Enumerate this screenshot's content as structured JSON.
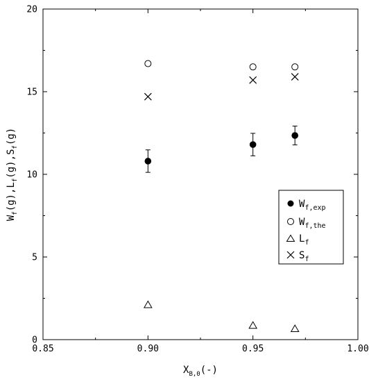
{
  "chart_data": {
    "type": "scatter",
    "title": "",
    "xlabel": {
      "main": "X",
      "sub": "B,0",
      "suffix": "(-)"
    },
    "ylabel": [
      {
        "main": "W",
        "sub": "f",
        "suffix": "(g),"
      },
      {
        "main": "L",
        "sub": "f",
        "suffix": "(g),"
      },
      {
        "main": "S",
        "sub": "f",
        "suffix": "(g)"
      }
    ],
    "xlim": [
      0.85,
      1.0
    ],
    "ylim": [
      0,
      20
    ],
    "xticks": [
      0.85,
      0.9,
      0.95,
      1.0
    ],
    "xtick_labels": [
      "0.85",
      "0.90",
      "0.95",
      "1.00"
    ],
    "yticks": [
      0,
      5,
      10,
      15,
      20
    ],
    "ytick_labels": [
      "0",
      "5",
      "10",
      "15",
      "20"
    ],
    "grid": false,
    "legend_position": "right",
    "series": [
      {
        "name": "W_f,exp",
        "label_main": "W",
        "label_sub": "f,exp",
        "marker": "filled-circle",
        "x": [
          0.9,
          0.95,
          0.97
        ],
        "y": [
          10.8,
          11.8,
          12.35
        ],
        "yerr": [
          0.68,
          0.68,
          0.57
        ]
      },
      {
        "name": "W_f,the",
        "label_main": "W",
        "label_sub": "f,the",
        "marker": "open-circle",
        "x": [
          0.9,
          0.95,
          0.97
        ],
        "y": [
          16.7,
          16.5,
          16.5
        ]
      },
      {
        "name": "L_f",
        "label_main": "L",
        "label_sub": "f",
        "marker": "open-triangle",
        "x": [
          0.9,
          0.95,
          0.97
        ],
        "y": [
          2.1,
          0.85,
          0.65
        ]
      },
      {
        "name": "S_f",
        "label_main": "S",
        "label_sub": "f",
        "marker": "cross",
        "x": [
          0.9,
          0.95,
          0.97
        ],
        "y": [
          14.7,
          15.7,
          15.9
        ]
      }
    ]
  }
}
